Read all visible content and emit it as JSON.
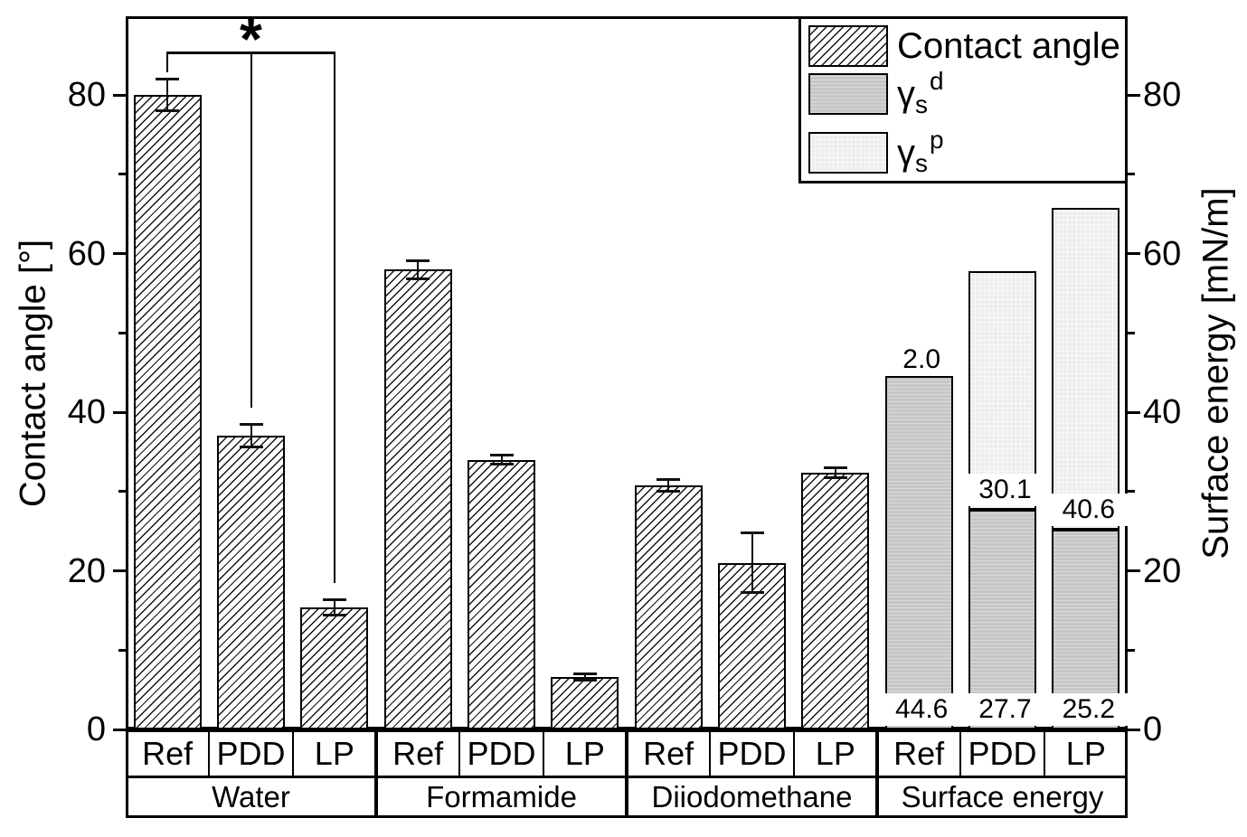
{
  "chart_data": {
    "type": "bar",
    "left_axis": {
      "label": "Contact angle [°]",
      "ticks": [
        0,
        20,
        40,
        60,
        80
      ],
      "minor_ticks": [
        10,
        30,
        50,
        70
      ],
      "range": [
        0,
        90
      ]
    },
    "right_axis": {
      "label": "Surface energy [mN/m]",
      "ticks": [
        0,
        20,
        40,
        60,
        80
      ],
      "minor_ticks": [
        10,
        30,
        50,
        70
      ],
      "range": [
        0,
        90
      ]
    },
    "legend": [
      {
        "swatch": "hatch",
        "label": "Contact angle"
      },
      {
        "swatch": "gray",
        "base": "γ",
        "sub": "s",
        "sup": "d"
      },
      {
        "swatch": "light",
        "base": "γ",
        "sub": "s",
        "sup": "p"
      }
    ],
    "groups": [
      {
        "name": "Water",
        "bars": [
          {
            "label": "Ref",
            "value": 80,
            "error": 2
          },
          {
            "label": "PDD",
            "value": 37,
            "error": 1.5
          },
          {
            "label": "LP",
            "value": 15.4,
            "error": 1
          }
        ]
      },
      {
        "name": "Formamide",
        "bars": [
          {
            "label": "Ref",
            "value": 58,
            "error": 1.2
          },
          {
            "label": "PDD",
            "value": 34,
            "error": 0.6
          },
          {
            "label": "LP",
            "value": 6.6,
            "error": 0.5
          }
        ]
      },
      {
        "name": "Diiodomethane",
        "bars": [
          {
            "label": "Ref",
            "value": 30.8,
            "error": 0.8
          },
          {
            "label": "PDD",
            "value": 21,
            "error": 3.8
          },
          {
            "label": "LP",
            "value": 32.4,
            "error": 0.7
          }
        ]
      },
      {
        "name": "Surface energy",
        "bars": [
          {
            "label": "Ref",
            "gamma_d": 44.6,
            "gamma_p": 2.0,
            "gamma_d_text": "44.6",
            "gamma_p_text": "2.0"
          },
          {
            "label": "PDD",
            "gamma_d": 27.7,
            "gamma_p": 30.1,
            "gamma_d_text": "27.7",
            "gamma_p_text": "30.1"
          },
          {
            "label": "LP",
            "gamma_d": 25.2,
            "gamma_p": 40.6,
            "gamma_d_text": "25.2",
            "gamma_p_text": "40.6"
          }
        ]
      }
    ],
    "annotations": {
      "significance": {
        "symbol": "*",
        "group": "Water",
        "between": [
          "Ref",
          "PDD",
          "LP"
        ]
      }
    },
    "colors": {
      "gamma_d_fill": "#c6c6c6",
      "gamma_p_fill": "#ededed",
      "line": "#000000"
    }
  }
}
